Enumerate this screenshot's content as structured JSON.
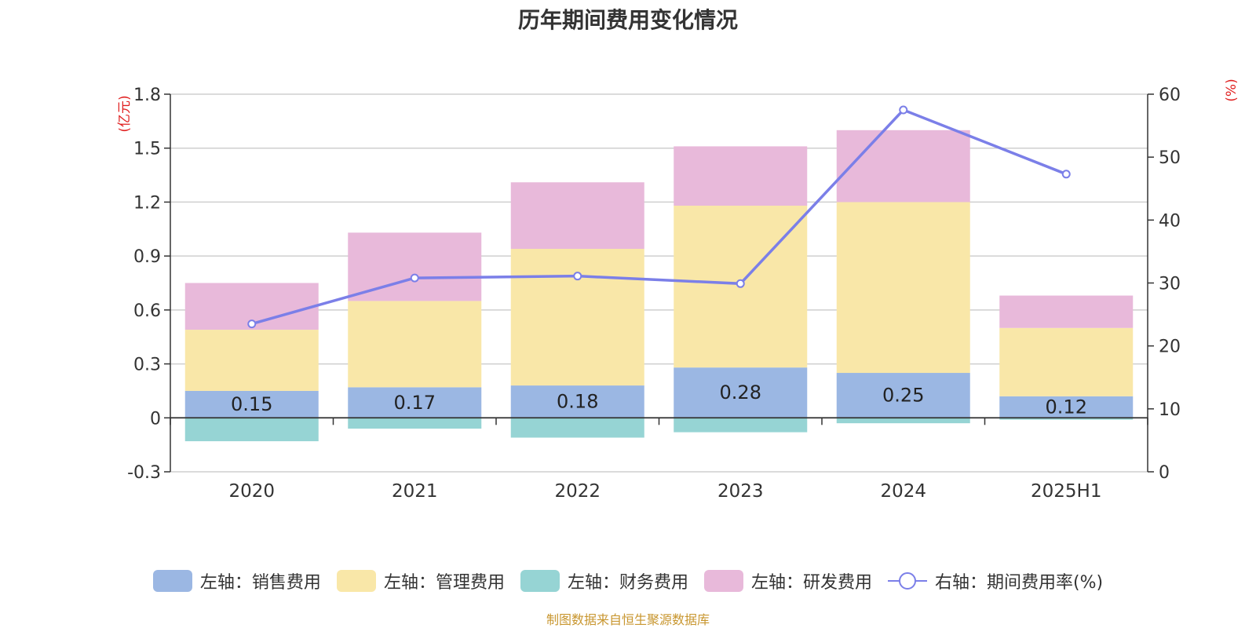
{
  "title": "历年期间费用变化情况",
  "source": "制图数据来自恒生聚源数据库",
  "chart_data": {
    "type": "bar",
    "categories": [
      "2020",
      "2021",
      "2022",
      "2023",
      "2024",
      "2025H1"
    ],
    "left_axis": {
      "unit": "(亿元)",
      "range": [
        -0.3,
        1.8
      ],
      "ticks": [
        1.8,
        1.5,
        1.2,
        0.9,
        0.6,
        0.3,
        0,
        -0.3
      ],
      "tick_labels": [
        "1.8",
        "1.5",
        "1.2",
        "0.9",
        "0.6",
        "0.3",
        "0",
        "-0.3"
      ]
    },
    "right_axis": {
      "unit": "(%)",
      "range": [
        0,
        60
      ],
      "ticks": [
        60,
        50,
        40,
        30,
        20,
        10,
        0
      ],
      "tick_labels": [
        "60",
        "50",
        "40",
        "30",
        "20",
        "10",
        "0"
      ]
    },
    "grid": true,
    "legend_position": "bottom",
    "series": [
      {
        "name": "左轴：销售费用",
        "type": "bar",
        "axis": "left",
        "color": "#9bb7e3",
        "values": [
          0.15,
          0.17,
          0.18,
          0.28,
          0.25,
          0.12
        ],
        "labels": [
          "0.15",
          "0.17",
          "0.18",
          "0.28",
          "0.25",
          "0.12"
        ]
      },
      {
        "name": "左轴：管理费用",
        "type": "bar",
        "axis": "left",
        "color": "#f9e7a8",
        "values": [
          0.34,
          0.48,
          0.76,
          0.9,
          0.95,
          0.38
        ]
      },
      {
        "name": "左轴：财务费用",
        "type": "bar",
        "axis": "left",
        "color": "#96d4d4",
        "values": [
          -0.13,
          -0.06,
          -0.11,
          -0.08,
          -0.03,
          -0.01
        ]
      },
      {
        "name": "左轴：研发费用",
        "type": "bar",
        "axis": "left",
        "color": "#e8b9da",
        "values": [
          0.26,
          0.38,
          0.37,
          0.33,
          0.4,
          0.18
        ]
      },
      {
        "name": "右轴：期间费用率(%)",
        "type": "line",
        "axis": "right",
        "color": "#7b7fe8",
        "values": [
          23.5,
          30.8,
          31.1,
          29.9,
          57.5,
          47.3
        ]
      }
    ]
  }
}
